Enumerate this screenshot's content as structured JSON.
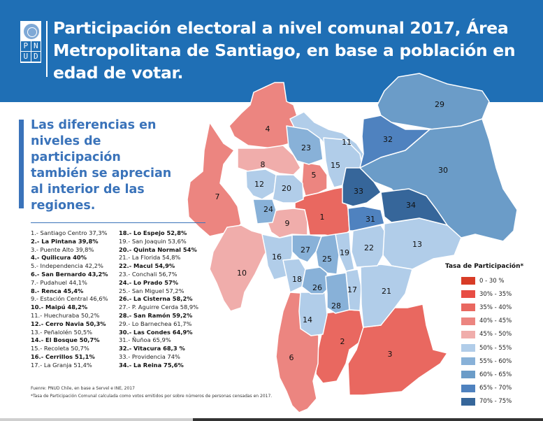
{
  "header": {
    "logo_letters": [
      "P",
      "N",
      "U",
      "D"
    ],
    "title": "Participación electoral a nivel comunal 2017, Área Metropolitana de Santiago, en base a población en edad de votar."
  },
  "quote": "Las diferencias en niveles de participación también se aprecian al interior de las regiones.",
  "communes": [
    {
      "n": 1,
      "label": "1.- Santiago Centro 37,3%",
      "bold": false
    },
    {
      "n": 2,
      "label": "2.- La Pintana 39,8%",
      "bold": true
    },
    {
      "n": 3,
      "label": "3.- Puente Alto 39,8%",
      "bold": false
    },
    {
      "n": 4,
      "label": "4.- Quilicura 40%",
      "bold": true
    },
    {
      "n": 5,
      "label": "5.- Independencia 42,2%",
      "bold": false
    },
    {
      "n": 6,
      "label": "6.- San Bernardo 43,2%",
      "bold": true
    },
    {
      "n": 7,
      "label": "7.- Pudahuel 44,1%",
      "bold": false
    },
    {
      "n": 8,
      "label": "8.- Renca 45,4%",
      "bold": true
    },
    {
      "n": 9,
      "label": "9.- Estación Central 46,6%",
      "bold": false
    },
    {
      "n": 10,
      "label": "10.- Maipú 48,2%",
      "bold": true
    },
    {
      "n": 11,
      "label": "11.- Huechuraba 50,2%",
      "bold": false
    },
    {
      "n": 12,
      "label": "12.- Cerro Navia 50,3%",
      "bold": true
    },
    {
      "n": 13,
      "label": "13.- Peñalolén 50,5%",
      "bold": false
    },
    {
      "n": 14,
      "label": "14.- El Bosque 50,7%",
      "bold": true
    },
    {
      "n": 15,
      "label": "15.- Recoleta 50,7%",
      "bold": false
    },
    {
      "n": 16,
      "label": "16.- Cerrillos 51,1%",
      "bold": true
    },
    {
      "n": 17,
      "label": "17.- La Granja 51,4%",
      "bold": false
    },
    {
      "n": 18,
      "label": "18.- Lo Espejo 52,8%",
      "bold": true
    },
    {
      "n": 19,
      "label": "19.- San Joaquin 53,6%",
      "bold": false
    },
    {
      "n": 20,
      "label": "20.- Quinta Normal 54%",
      "bold": true
    },
    {
      "n": 21,
      "label": "21.- La Florida 54,8%",
      "bold": false
    },
    {
      "n": 22,
      "label": "22.- Macul 54,9%",
      "bold": true
    },
    {
      "n": 23,
      "label": "23.- Conchali 56,7%",
      "bold": false
    },
    {
      "n": 24,
      "label": "24.- Lo Prado 57%",
      "bold": true
    },
    {
      "n": 25,
      "label": "25.- San Miguel 57,2%",
      "bold": false
    },
    {
      "n": 26,
      "label": "26.- La Cisterna 58,2%",
      "bold": true
    },
    {
      "n": 27,
      "label": "27.- P. Aguirre Cerda 58,9%",
      "bold": false
    },
    {
      "n": 28,
      "label": "28.- San Ramón 59,2%",
      "bold": true
    },
    {
      "n": 29,
      "label": "29.- Lo Barnechea 61,7%",
      "bold": false
    },
    {
      "n": 30,
      "label": "30.- Las Condes 64,9%",
      "bold": true
    },
    {
      "n": 31,
      "label": "31.- Ñuñoa 65,9%",
      "bold": false
    },
    {
      "n": 32,
      "label": "32.- Vitacura 68,3 %",
      "bold": true
    },
    {
      "n": 33,
      "label": "33.- Providencia 74%",
      "bold": false
    },
    {
      "n": 34,
      "label": "34.- La Reina 75,6%",
      "bold": true
    }
  ],
  "map": {
    "regions": [
      {
        "id": "1",
        "rate": 37.3
      },
      {
        "id": "2",
        "rate": 39.8
      },
      {
        "id": "3",
        "rate": 39.8
      },
      {
        "id": "4",
        "rate": 40
      },
      {
        "id": "5",
        "rate": 42.2
      },
      {
        "id": "6",
        "rate": 43.2
      },
      {
        "id": "7",
        "rate": 44.1
      },
      {
        "id": "8",
        "rate": 45.4
      },
      {
        "id": "9",
        "rate": 46.6
      },
      {
        "id": "10",
        "rate": 48.2
      },
      {
        "id": "11",
        "rate": 50.2
      },
      {
        "id": "12",
        "rate": 50.3
      },
      {
        "id": "13",
        "rate": 50.5
      },
      {
        "id": "14",
        "rate": 50.7
      },
      {
        "id": "15",
        "rate": 50.7
      },
      {
        "id": "16",
        "rate": 51.1
      },
      {
        "id": "17",
        "rate": 51.4
      },
      {
        "id": "18",
        "rate": 52.8
      },
      {
        "id": "19",
        "rate": 53.6
      },
      {
        "id": "20",
        "rate": 54
      },
      {
        "id": "21",
        "rate": 54.8
      },
      {
        "id": "22",
        "rate": 54.9
      },
      {
        "id": "23",
        "rate": 56.7
      },
      {
        "id": "24",
        "rate": 57
      },
      {
        "id": "25",
        "rate": 57.2
      },
      {
        "id": "26",
        "rate": 58.2
      },
      {
        "id": "27",
        "rate": 58.9
      },
      {
        "id": "28",
        "rate": 59.2
      },
      {
        "id": "29",
        "rate": 61.7
      },
      {
        "id": "30",
        "rate": 64.9
      },
      {
        "id": "31",
        "rate": 65.9
      },
      {
        "id": "32",
        "rate": 68.3
      },
      {
        "id": "33",
        "rate": 74
      },
      {
        "id": "34",
        "rate": 75.6
      }
    ]
  },
  "legend": {
    "title": "Tasa de Participación*",
    "items": [
      {
        "label": "0 - 30 %",
        "color": "#d83c27",
        "min": 0,
        "max": 30
      },
      {
        "label": "30% - 35%",
        "color": "#e84d44",
        "min": 30,
        "max": 35
      },
      {
        "label": "35% - 40%",
        "color": "#e96860",
        "min": 35,
        "max": 40
      },
      {
        "label": "40% - 45%",
        "color": "#ec8580",
        "min": 40,
        "max": 45
      },
      {
        "label": "45% - 50%",
        "color": "#f0adab",
        "min": 45,
        "max": 50
      },
      {
        "label": "50% - 55%",
        "color": "#b1cde9",
        "min": 50,
        "max": 55
      },
      {
        "label": "55% - 60%",
        "color": "#88b1d8",
        "min": 55,
        "max": 60
      },
      {
        "label": "60% - 65%",
        "color": "#6b9cc8",
        "min": 60,
        "max": 65
      },
      {
        "label": "65% - 70%",
        "color": "#4f82bf",
        "min": 65,
        "max": 70
      },
      {
        "label": "70% - 75%",
        "color": "#36669a",
        "min": 70,
        "max": 75
      }
    ]
  },
  "source": "Fuenre: PNUD Chile, en base a Servel e INE, 2017",
  "note": "*Tasa de Participación Comunal calculada como votos emitidos por sobre números de personas censadas en 2017."
}
